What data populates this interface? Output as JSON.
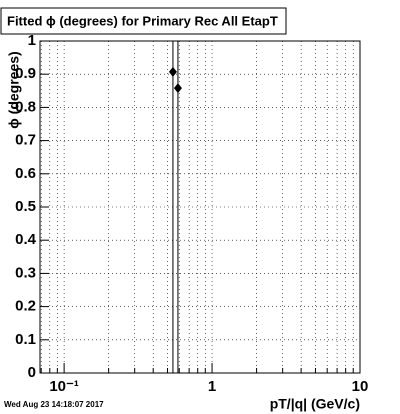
{
  "chart_data": {
    "type": "scatter",
    "title": "Fitted ϕ (degrees) for Primary Rec All EtapT",
    "x_label": "pT/|q| (GeV/c)",
    "y_label": "ϕ (degrees)",
    "footer": "Wed Aug 23 14:18:07 2017",
    "x": [
      0.544,
      0.588
    ],
    "values": [
      0.907,
      0.858
    ],
    "errors": [
      1,
      1
    ],
    "color": "#000000",
    "marker": "diamond",
    "xlog": true,
    "xlim": [
      0.0687,
      10
    ],
    "xticks": [
      {
        "value": 0.1,
        "label": "10⁻¹"
      },
      1,
      10
    ],
    "xminorticks": [
      0.07,
      0.08,
      0.09,
      0.2,
      0.3,
      0.4,
      0.5,
      0.6,
      0.7,
      0.8,
      0.9,
      2,
      3,
      4,
      5,
      6,
      7,
      8,
      9
    ],
    "ylim": [
      0,
      1
    ],
    "yticks": [
      0,
      0.1,
      0.2,
      0.3,
      0.4,
      0.5,
      0.6,
      0.7,
      0.8,
      0.9,
      1
    ],
    "grid": true
  }
}
